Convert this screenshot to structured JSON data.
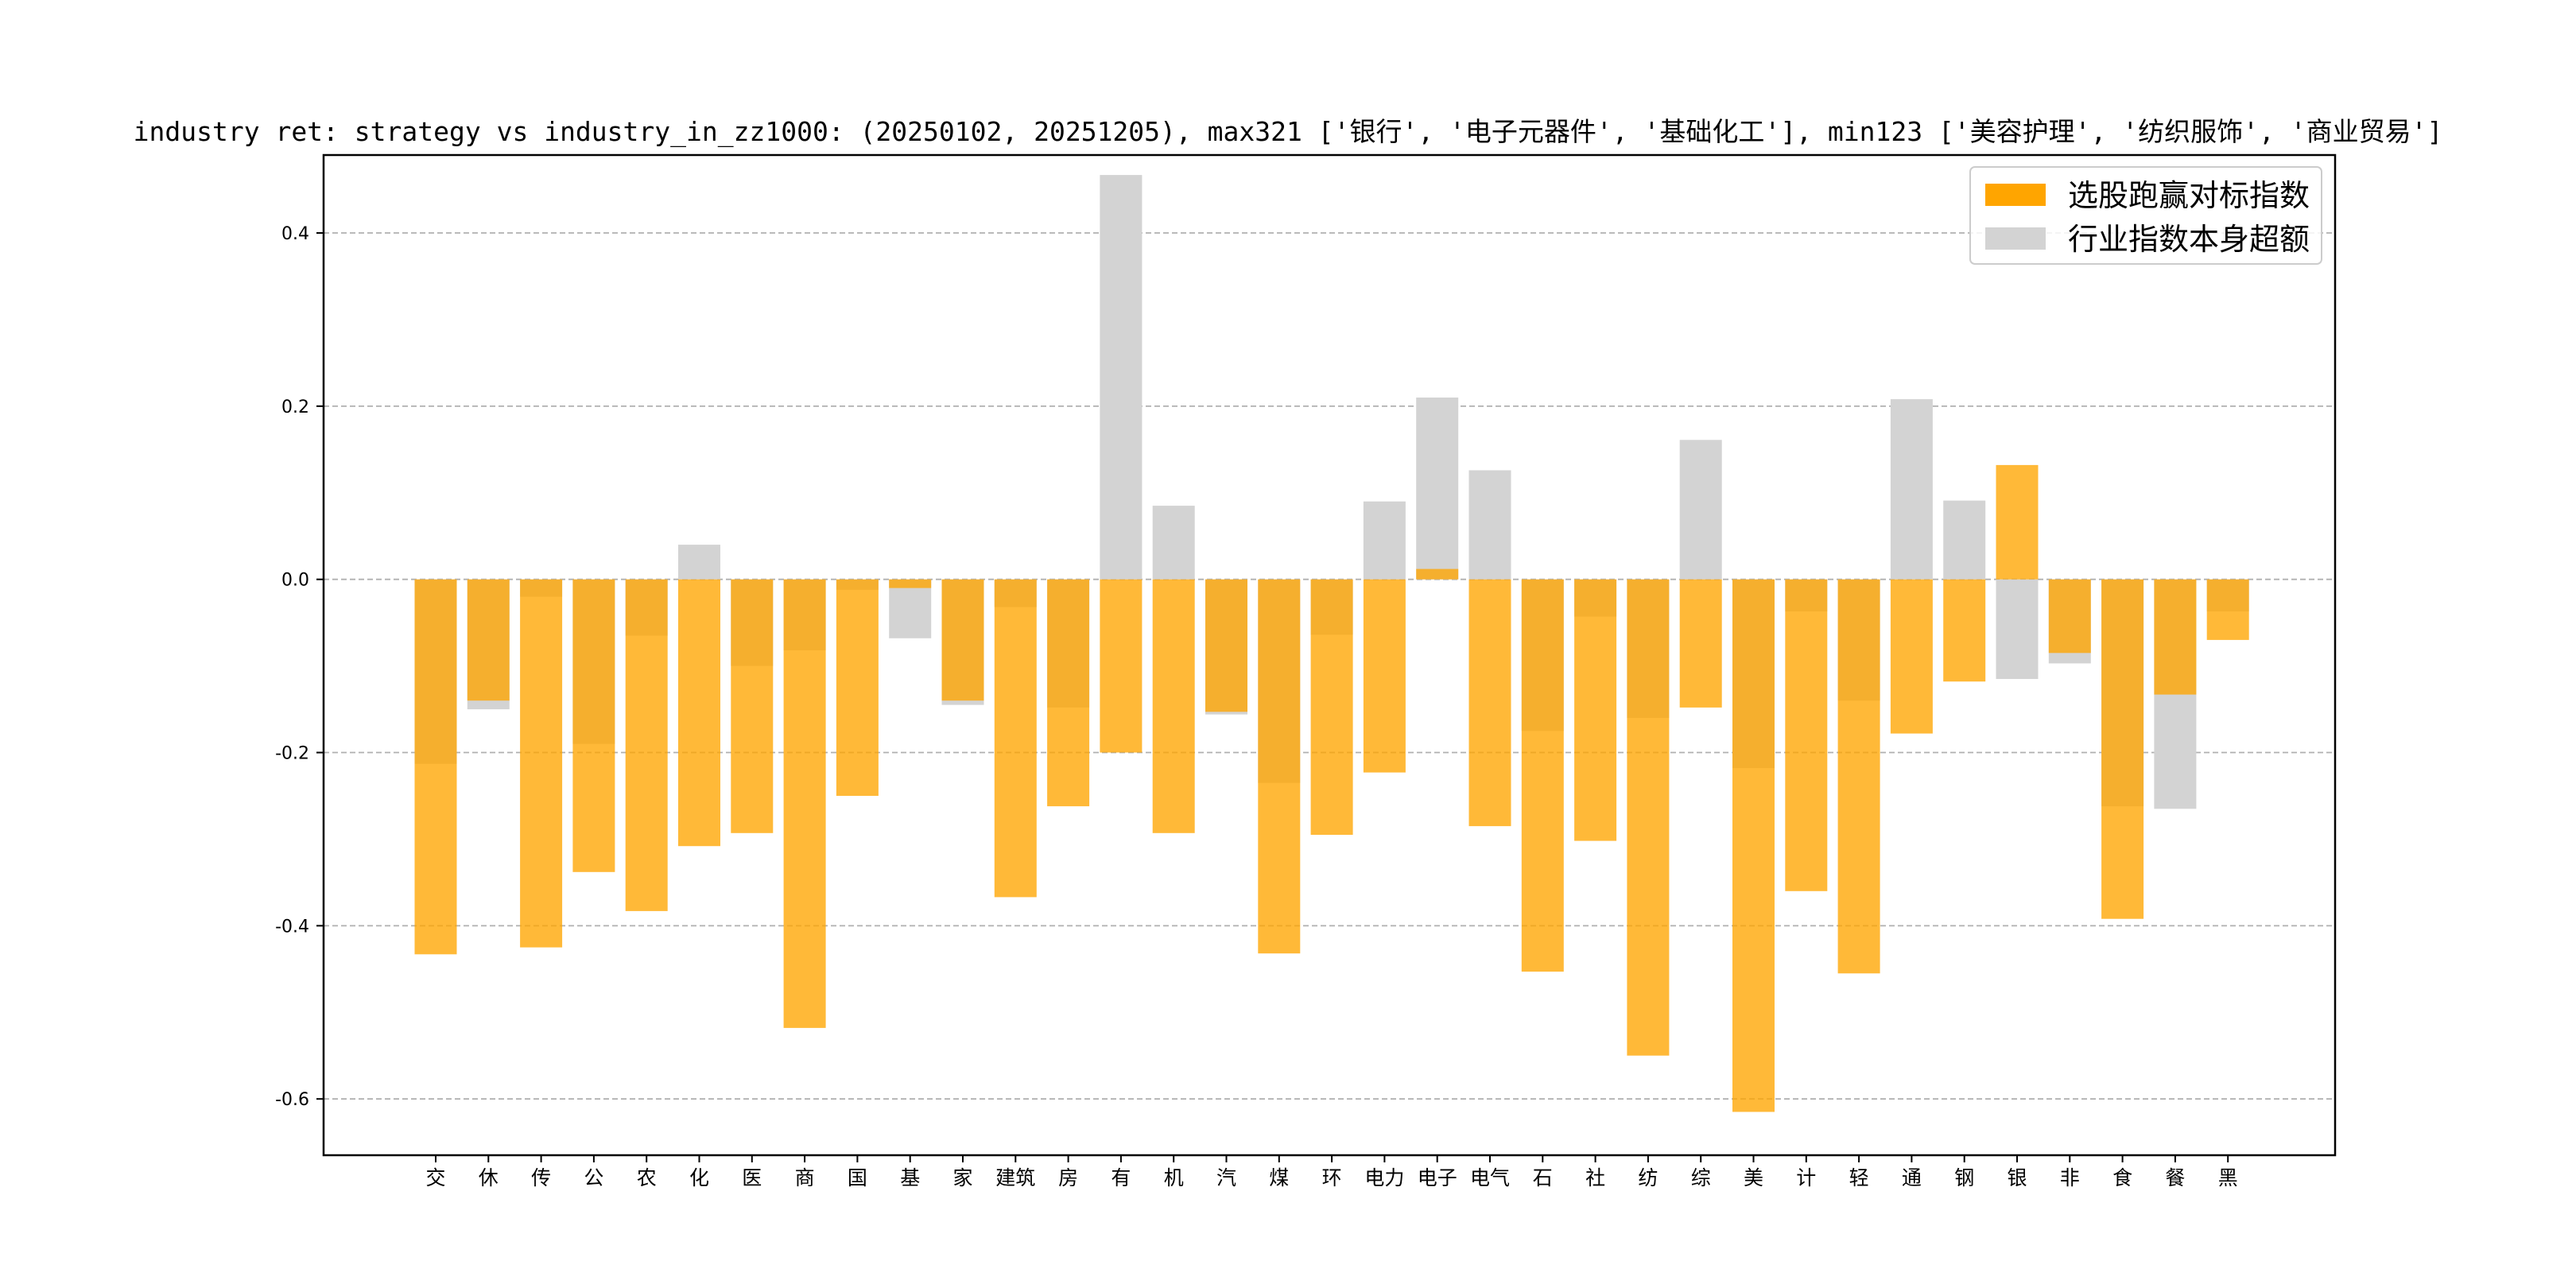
{
  "colors": {
    "strategy": "#ffa500",
    "industry": "#d3d3d3",
    "grid": "#b0b0b0",
    "axis": "#000000"
  },
  "chart_data": {
    "type": "bar",
    "title": "industry ret: strategy vs industry_in_zz1000: (20250102, 20251205), max321 ['银行', '电子元器件', '基础化工'], min123 ['美容护理', '纺织服饰', '商业贸易']",
    "xlabel": "",
    "ylabel": "",
    "ylim": [
      -0.665,
      0.49
    ],
    "yticks": [
      -0.6,
      -0.4,
      -0.2,
      0.0,
      0.2,
      0.4
    ],
    "ytick_labels": [
      "-0.6",
      "-0.4",
      "-0.2",
      "0.0",
      "0.2",
      "0.4"
    ],
    "grid": "y-dashed",
    "legend_position": "top-right",
    "categories": [
      "交",
      "休",
      "传",
      "公",
      "农",
      "化",
      "医",
      "商",
      "国",
      "基",
      "家",
      "建筑",
      "房",
      "有",
      "机",
      "汽",
      "煤",
      "环",
      "电力",
      "电子",
      "电气",
      "石",
      "社",
      "纺",
      "综",
      "美",
      "计",
      "轻",
      "通",
      "钢",
      "银",
      "非",
      "食",
      "餐",
      "黑"
    ],
    "series": [
      {
        "name": "选股跑赢对标指数",
        "values": [
          -0.433,
          -0.14,
          -0.425,
          -0.338,
          -0.383,
          -0.308,
          -0.293,
          -0.518,
          -0.25,
          -0.01,
          -0.14,
          -0.367,
          -0.262,
          -0.2,
          -0.293,
          -0.153,
          -0.432,
          -0.295,
          -0.223,
          0.012,
          -0.285,
          -0.453,
          -0.302,
          -0.55,
          -0.148,
          -0.615,
          -0.36,
          -0.455,
          -0.178,
          -0.118,
          0.132,
          -0.085,
          -0.392,
          -0.133,
          -0.07
        ]
      },
      {
        "name": "行业指数本身超额",
        "values": [
          -0.213,
          -0.15,
          -0.02,
          -0.19,
          -0.065,
          0.04,
          -0.1,
          -0.082,
          -0.012,
          -0.068,
          -0.145,
          -0.032,
          -0.148,
          0.467,
          0.085,
          -0.156,
          -0.235,
          -0.064,
          0.09,
          0.21,
          0.126,
          -0.175,
          -0.043,
          -0.16,
          0.161,
          -0.218,
          -0.037,
          -0.14,
          0.208,
          0.091,
          -0.115,
          -0.097,
          -0.262,
          -0.265,
          -0.037
        ]
      }
    ]
  }
}
